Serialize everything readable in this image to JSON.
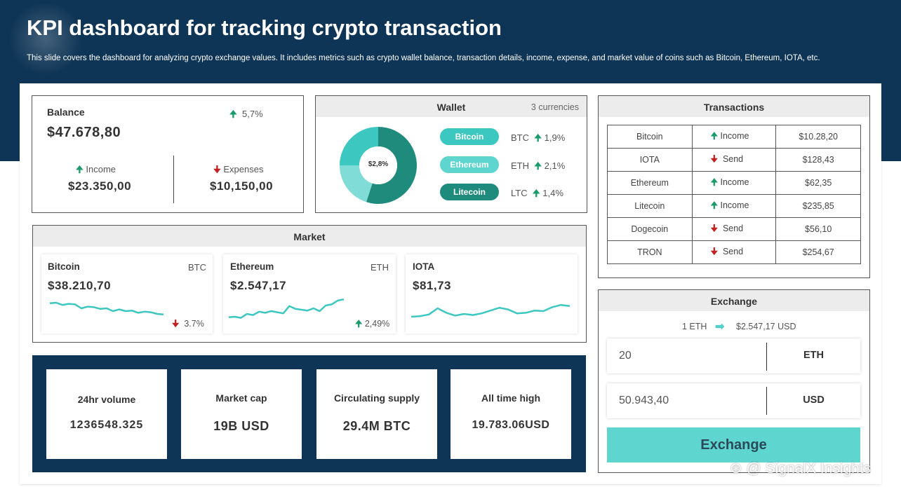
{
  "header": {
    "title": "KPI dashboard for tracking crypto transaction",
    "subtitle": "This slide covers the dashboard for analyzing crypto  exchange values. It includes metrics such as crypto wallet balance, transaction details, income, expense, and market value of coins such as Bitcoin, Ethereum, IOTA,  etc."
  },
  "balance": {
    "label": "Balance",
    "change": "5,7%",
    "value": "$47.678,80",
    "income_label": "Income",
    "income_value": "$23.350,00",
    "expenses_label": "Expenses",
    "expenses_value": "$10,150,00"
  },
  "wallet": {
    "title": "Wallet",
    "currencies": "3 currencies",
    "donut_center": "$2,8%",
    "donut_shares": [
      0.55,
      0.2,
      0.25
    ],
    "colors": [
      "#1f8b7c",
      "#7fdcd6",
      "#3cc8c0"
    ],
    "items": [
      {
        "name": "Bitcoin",
        "symbol": "BTC",
        "change": "1,9%",
        "color": "#3cc8c0"
      },
      {
        "name": "Ethereum",
        "symbol": "ETH",
        "change": "2,1%",
        "color": "#5fd5cf"
      },
      {
        "name": "Litecoin",
        "symbol": "LTC",
        "change": "1,4%",
        "color": "#1f8b7c"
      }
    ]
  },
  "market": {
    "title": "Market",
    "cards": [
      {
        "name": "Bitcoin",
        "symbol": "BTC",
        "price": "$38.210,70",
        "change": "3.7%",
        "direction": "down",
        "spark": [
          0.78,
          0.8,
          0.72,
          0.76,
          0.74,
          0.6,
          0.66,
          0.64,
          0.58,
          0.6,
          0.5,
          0.56,
          0.5,
          0.52,
          0.44,
          0.48,
          0.46,
          0.4,
          0.38
        ]
      },
      {
        "name": "Ethereum",
        "symbol": "ETH",
        "price": "$2.547,17",
        "change": "2,49%",
        "direction": "up",
        "spark": [
          0.28,
          0.3,
          0.26,
          0.4,
          0.36,
          0.48,
          0.44,
          0.5,
          0.46,
          0.42,
          0.68,
          0.58,
          0.55,
          0.52,
          0.6,
          0.5,
          0.7,
          0.74,
          0.88,
          0.92
        ]
      },
      {
        "name": "IOTA",
        "symbol": "",
        "price": "$81,73",
        "change": "",
        "direction": "",
        "spark": [
          0.3,
          0.32,
          0.38,
          0.6,
          0.44,
          0.34,
          0.4,
          0.36,
          0.42,
          0.52,
          0.62,
          0.56,
          0.42,
          0.44,
          0.52,
          0.5,
          0.64,
          0.72,
          0.68
        ]
      }
    ]
  },
  "stats": [
    {
      "label": "24hr volume",
      "value": "1236548.325"
    },
    {
      "label": "Market cap",
      "value": "19B USD"
    },
    {
      "label": "Circulating supply",
      "value": "29.4M BTC"
    },
    {
      "label": "All time high",
      "value": "19.783.06USD"
    }
  ],
  "transactions": {
    "title": "Transactions",
    "rows": [
      {
        "coin": "Bitcoin",
        "type": "Income",
        "direction": "up",
        "amount": "$10.28,20"
      },
      {
        "coin": "IOTA",
        "type": "Send",
        "direction": "down",
        "amount": "$128,43"
      },
      {
        "coin": "Ethereum",
        "type": "Income",
        "direction": "up",
        "amount": "$62,35"
      },
      {
        "coin": "Litecoin",
        "type": "Income",
        "direction": "up",
        "amount": "$235,85"
      },
      {
        "coin": "Dogecoin",
        "type": "Send",
        "direction": "down",
        "amount": "$56,10"
      },
      {
        "coin": "TRON",
        "type": "Send",
        "direction": "down",
        "amount": "$254,67"
      }
    ]
  },
  "exchange": {
    "title": "Exchange",
    "rate_left": "1 ETH",
    "rate_right": "$2.547,17 USD",
    "amount_value": "20",
    "amount_unit": "ETH",
    "result_value": "50.943,40",
    "result_unit": "USD",
    "button_label": "Exchange"
  },
  "watermark": "SignalX Insights",
  "colors": {
    "navy": "#0f3556",
    "teal": "#5fd5cf",
    "spark": "#3cc8c0",
    "up": "#1a9c6a",
    "down": "#c42020"
  }
}
